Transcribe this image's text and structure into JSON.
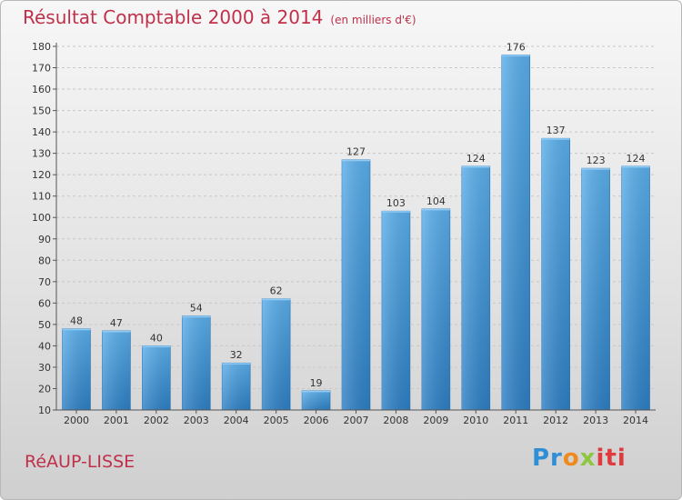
{
  "title": "Résultat Comptable 2000 à 2014",
  "unit": "(en milliers d'€)",
  "commune": "RéAUP-LISSE",
  "logo": {
    "p1": "Pr",
    "p2": "o",
    "p3": "x",
    "p4": "iti"
  },
  "colors": {
    "bar": "#4b9fe0",
    "title": "#c0304a"
  },
  "chart_data": {
    "type": "bar",
    "categories": [
      "2000",
      "2001",
      "2002",
      "2003",
      "2004",
      "2005",
      "2006",
      "2007",
      "2008",
      "2009",
      "2010",
      "2011",
      "2012",
      "2013",
      "2014"
    ],
    "values": [
      48,
      47,
      40,
      54,
      32,
      62,
      19,
      127,
      103,
      104,
      124,
      176,
      137,
      123,
      124
    ],
    "ylim": [
      10,
      180
    ],
    "yticks": [
      10,
      20,
      30,
      40,
      50,
      60,
      70,
      80,
      90,
      100,
      110,
      120,
      130,
      140,
      150,
      160,
      170,
      180
    ],
    "grid": true
  }
}
